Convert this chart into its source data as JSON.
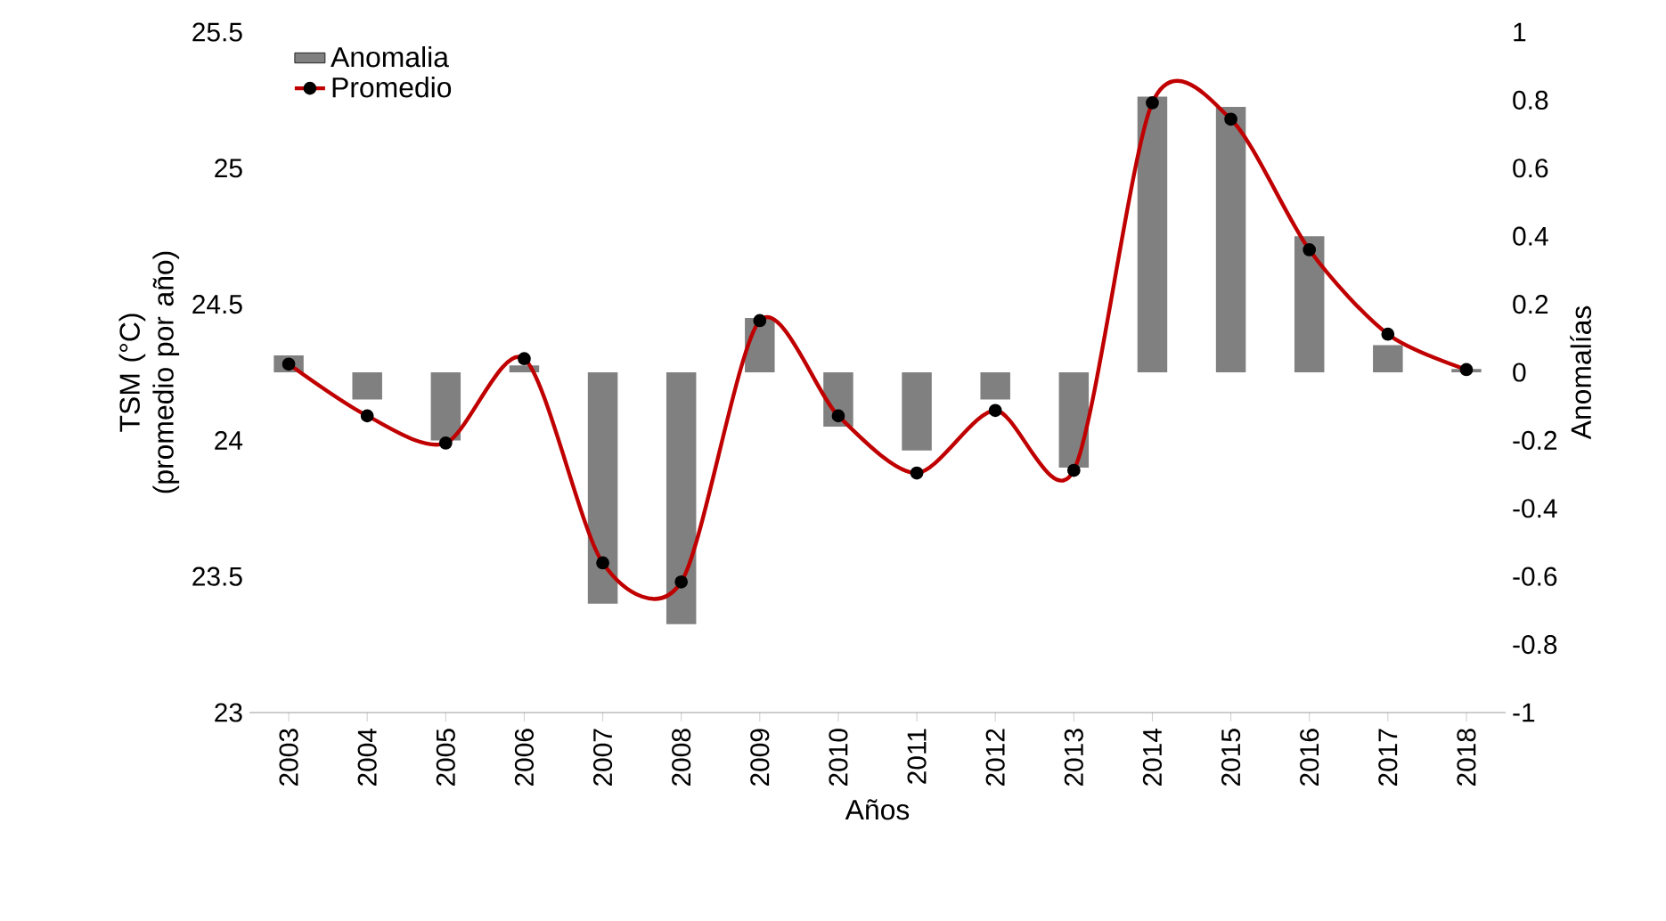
{
  "chart_data": {
    "type": "bar",
    "xlabel": "Años",
    "ylabel": "TSM (°C) (promedio por año)",
    "y2label": "Anomalías",
    "categories": [
      "2003",
      "2004",
      "2005",
      "2006",
      "2007",
      "2008",
      "2009",
      "2010",
      "2011",
      "2012",
      "2013",
      "2014",
      "2015",
      "2016",
      "2017",
      "2018"
    ],
    "series": [
      {
        "name": "Anomalia",
        "axis": "y2",
        "color": "#808080",
        "values": [
          0.05,
          -0.08,
          -0.2,
          0.02,
          -0.68,
          -0.74,
          0.16,
          -0.16,
          -0.23,
          -0.08,
          -0.28,
          0.81,
          0.78,
          0.4,
          0.08,
          0.01
        ]
      },
      {
        "name": "Promedio",
        "type": "line",
        "axis": "y",
        "color": "#c00000",
        "values": [
          24.28,
          24.09,
          23.99,
          24.3,
          23.55,
          23.48,
          24.44,
          24.09,
          23.88,
          24.11,
          23.89,
          25.24,
          25.18,
          24.7,
          24.39,
          24.26
        ]
      }
    ],
    "ylim": [
      23,
      25.5
    ],
    "yticks": [
      23,
      23.5,
      24,
      24.5,
      25,
      25.5
    ],
    "y2lim": [
      -1,
      1
    ],
    "y2ticks": [
      -1,
      -0.8,
      -0.6,
      -0.4,
      -0.2,
      0,
      0.2,
      0.4,
      0.6,
      0.8,
      1
    ],
    "legend": "top left",
    "marker": "circle",
    "line_style": "solid"
  }
}
